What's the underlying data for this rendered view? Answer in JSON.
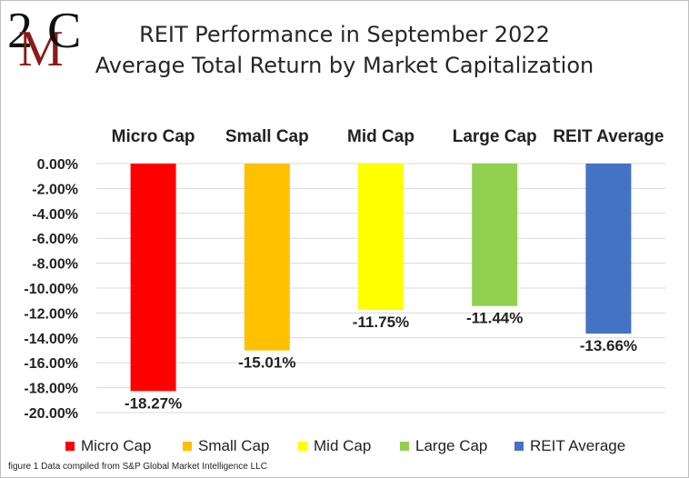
{
  "header": {
    "logo_text": "2MC",
    "title_line1": "REIT Performance  in September 2022",
    "title_line2": "Average Total Return by Market Capitalization"
  },
  "chart_data": {
    "type": "bar",
    "title": "REIT Performance  in September 2022 Average Total Return by Market Capitalization",
    "categories": [
      "Micro Cap",
      "Small Cap",
      "Mid Cap",
      "Large Cap",
      "REIT Average"
    ],
    "values": [
      -18.27,
      -15.01,
      -11.75,
      -11.44,
      -13.66
    ],
    "value_labels": [
      "-18.27%",
      "-15.01%",
      "-11.75%",
      "-11.44%",
      "-13.66%"
    ],
    "colors": [
      "#ff0000",
      "#ffc000",
      "#ffff00",
      "#92d050",
      "#4472c4"
    ],
    "ylim": [
      -20,
      0
    ],
    "yticks": [
      "0.00%",
      "-2.00%",
      "-4.00%",
      "-6.00%",
      "-8.00%",
      "-10.00%",
      "-12.00%",
      "-14.00%",
      "-16.00%",
      "-18.00%",
      "-20.00%"
    ],
    "xlabel": "",
    "ylabel": "",
    "grid": true,
    "legend_position": "bottom"
  },
  "footnote": "figure 1 Data compiled from S&P Global Market Intelligence LLC"
}
